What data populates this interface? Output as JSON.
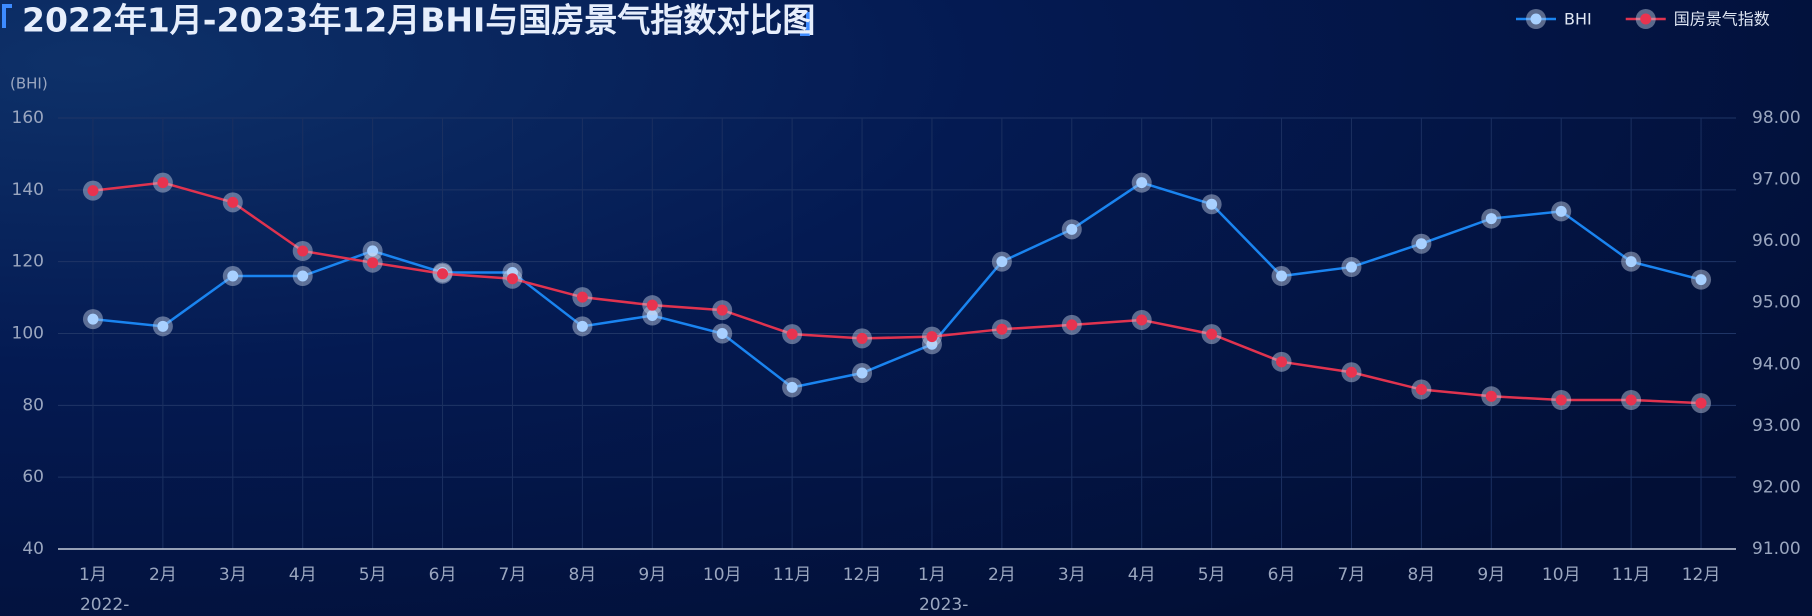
{
  "chart_data": {
    "type": "line",
    "title": "2022年1月-2023年12月BHI与国房景气指数对比图",
    "y_label": "(BHI)",
    "categories": [
      "1月",
      "2月",
      "3月",
      "4月",
      "5月",
      "6月",
      "7月",
      "8月",
      "9月",
      "10月",
      "11月",
      "12月",
      "1月",
      "2月",
      "3月",
      "4月",
      "5月",
      "6月",
      "7月",
      "8月",
      "9月",
      "10月",
      "11月",
      "12月"
    ],
    "years": [
      "2022-",
      "2023-"
    ],
    "series": [
      {
        "name": "BHI",
        "color": "#1a84f0",
        "axis": "y",
        "values": [
          104,
          102,
          116,
          116,
          123,
          117,
          117,
          102,
          105,
          100,
          85,
          89,
          97,
          120,
          129,
          142,
          136,
          116,
          118.5,
          125,
          132,
          134,
          120,
          115
        ]
      },
      {
        "name": "国房景气指数",
        "color": "#e0334f",
        "axis": "y2",
        "values": [
          96.82,
          96.95,
          96.63,
          95.84,
          95.65,
          95.47,
          95.39,
          95.09,
          94.96,
          94.88,
          94.49,
          94.42,
          94.45,
          94.57,
          94.64,
          94.72,
          94.49,
          94.04,
          93.87,
          93.59,
          93.48,
          93.42,
          93.42,
          93.37
        ]
      }
    ],
    "ylim": [
      40,
      160
    ],
    "yticks": [
      40,
      60,
      80,
      100,
      120,
      140,
      160
    ],
    "y2lim": [
      91,
      98
    ],
    "y2ticks": [
      {
        "value": 91,
        "label": "91.00"
      },
      {
        "value": 92,
        "label": "92.00"
      },
      {
        "value": 93,
        "label": "93.00"
      },
      {
        "value": 94,
        "label": "94.00"
      },
      {
        "value": 95,
        "label": "95.00"
      },
      {
        "value": 96,
        "label": "96.00"
      },
      {
        "value": 97,
        "label": "97.00"
      },
      {
        "value": 98,
        "label": "98.00"
      }
    ],
    "grid": true,
    "legend": "top-right"
  }
}
